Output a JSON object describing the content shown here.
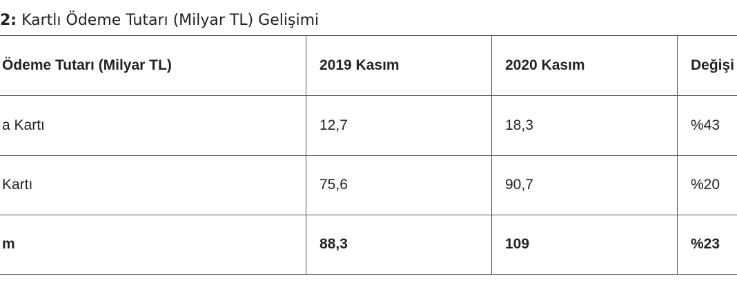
{
  "title": {
    "prefix": "2:",
    "text": " Kartlı Ödeme Tutarı (Milyar TL) Gelişimi"
  },
  "table": {
    "header": [
      "Ödeme Tutarı (Milyar TL)",
      "2019 Kasım",
      "2020 Kasım",
      "Değişi"
    ],
    "rows": [
      [
        "a Kartı",
        "12,7",
        "18,3",
        "%43"
      ],
      [
        "Kartı",
        "75,6",
        "90,7",
        "%20"
      ],
      [
        "m",
        "88,3",
        "109",
        "%23"
      ]
    ]
  }
}
